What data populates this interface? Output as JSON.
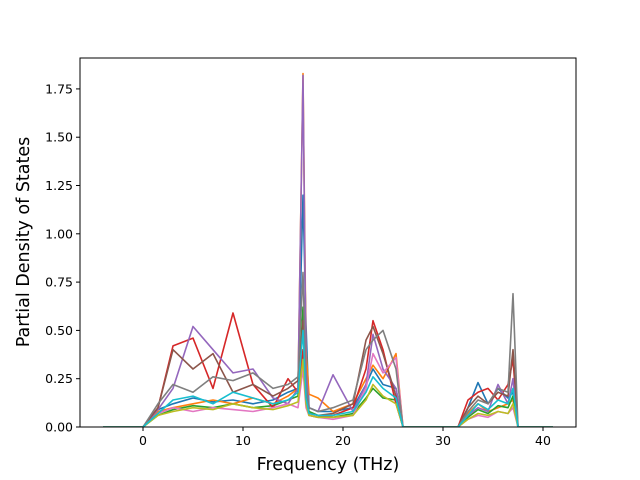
{
  "chart_data": {
    "type": "line",
    "title": "",
    "xlabel": "Frequency (THz)",
    "ylabel": "Partial Density of States",
    "xlim": [
      -6.3,
      43.3
    ],
    "ylim": [
      0,
      1.91
    ],
    "xticks": [
      0,
      10,
      20,
      30,
      40
    ],
    "xtick_labels": [
      "0",
      "10",
      "20",
      "30",
      "40"
    ],
    "yticks": [
      0,
      0.25,
      0.5,
      0.75,
      1.0,
      1.25,
      1.5,
      1.75
    ],
    "ytick_labels": [
      "0.00",
      "0.25",
      "0.50",
      "0.75",
      "1.00",
      "1.25",
      "1.50",
      "1.75"
    ],
    "grid": false,
    "legend": "none",
    "series": [
      {
        "color": "#1f77b4",
        "x": [
          -4,
          0,
          1.5,
          3,
          5,
          7,
          9,
          11,
          13,
          14.5,
          15.5,
          16.0,
          16.3,
          16.6,
          17.5,
          19,
          21,
          22.3,
          23,
          24,
          25.3,
          26,
          31.5,
          32.5,
          33.5,
          34.5,
          35.5,
          36.5,
          37,
          37.5,
          41
        ],
        "y": [
          0,
          0,
          0.09,
          0.12,
          0.15,
          0.13,
          0.14,
          0.12,
          0.14,
          0.18,
          0.2,
          1.2,
          0.53,
          0.1,
          0.08,
          0.08,
          0.1,
          0.22,
          0.3,
          0.22,
          0.2,
          0,
          0,
          0.1,
          0.23,
          0.12,
          0.2,
          0.15,
          0.18,
          0,
          0
        ]
      },
      {
        "color": "#ff7f0e",
        "x": [
          -4,
          0,
          1.5,
          3,
          5,
          7,
          9,
          11,
          13,
          14.5,
          15.5,
          16.0,
          16.3,
          16.6,
          17.5,
          19,
          21,
          22.3,
          23,
          24,
          25.3,
          26,
          31.5,
          32.5,
          33.5,
          34.5,
          35.5,
          36.5,
          37,
          37.5,
          41
        ],
        "y": [
          0,
          0,
          0.08,
          0.1,
          0.12,
          0.14,
          0.12,
          0.15,
          0.12,
          0.16,
          0.2,
          1.83,
          0.4,
          0.17,
          0.15,
          0.08,
          0.12,
          0.25,
          0.32,
          0.25,
          0.38,
          0,
          0,
          0.07,
          0.12,
          0.08,
          0.1,
          0.12,
          0.14,
          0,
          0
        ]
      },
      {
        "color": "#2ca02c",
        "x": [
          -4,
          0,
          1.5,
          3,
          5,
          7,
          9,
          11,
          13,
          14.5,
          15.5,
          16.0,
          16.3,
          16.6,
          17.5,
          19,
          21,
          22.3,
          23,
          24,
          25.3,
          26,
          31.5,
          32.5,
          33.5,
          34.5,
          35.5,
          36.5,
          37,
          37.5,
          41
        ],
        "y": [
          0,
          0,
          0.06,
          0.09,
          0.11,
          0.1,
          0.12,
          0.1,
          0.11,
          0.14,
          0.16,
          0.62,
          0.2,
          0.08,
          0.06,
          0.05,
          0.07,
          0.15,
          0.2,
          0.15,
          0.14,
          0,
          0,
          0.05,
          0.09,
          0.07,
          0.11,
          0.1,
          0.16,
          0,
          0
        ]
      },
      {
        "color": "#d62728",
        "x": [
          -4,
          0,
          1.5,
          3,
          5,
          7,
          9,
          11,
          13,
          14.5,
          15.5,
          16.0,
          16.3,
          16.6,
          17.5,
          19,
          21,
          22.3,
          23,
          24,
          25.3,
          26,
          31.5,
          32.5,
          33.5,
          34.5,
          35.5,
          36.5,
          37,
          37.5,
          41
        ],
        "y": [
          0,
          0,
          0.1,
          0.42,
          0.46,
          0.2,
          0.59,
          0.22,
          0.1,
          0.25,
          0.18,
          0.4,
          0.12,
          0.06,
          0.05,
          0.06,
          0.1,
          0.3,
          0.55,
          0.4,
          0.12,
          0,
          0,
          0.14,
          0.18,
          0.2,
          0.14,
          0.22,
          0.35,
          0,
          0
        ]
      },
      {
        "color": "#9467bd",
        "x": [
          -4,
          0,
          1.5,
          3,
          5,
          7,
          9,
          11,
          13,
          14.5,
          15.5,
          16.0,
          16.3,
          16.6,
          17.5,
          19,
          21,
          22.3,
          23,
          24,
          25.3,
          26,
          31.5,
          32.5,
          33.5,
          34.5,
          35.5,
          36.5,
          37,
          37.5,
          41
        ],
        "y": [
          0,
          0,
          0.09,
          0.2,
          0.52,
          0.4,
          0.28,
          0.3,
          0.15,
          0.12,
          0.2,
          1.82,
          0.3,
          0.1,
          0.08,
          0.27,
          0.08,
          0.22,
          0.48,
          0.3,
          0.2,
          0,
          0,
          0.06,
          0.1,
          0.08,
          0.22,
          0.12,
          0.25,
          0,
          0
        ]
      },
      {
        "color": "#8c564b",
        "x": [
          -4,
          0,
          1.5,
          3,
          5,
          7,
          9,
          11,
          13,
          14.5,
          15.5,
          16.0,
          16.3,
          16.6,
          17.5,
          19,
          21,
          22.3,
          23,
          24,
          25.3,
          26,
          31.5,
          32.5,
          33.5,
          34.5,
          35.5,
          36.5,
          37,
          37.5,
          41
        ],
        "y": [
          0,
          0,
          0.1,
          0.4,
          0.3,
          0.38,
          0.18,
          0.22,
          0.16,
          0.2,
          0.24,
          0.55,
          0.16,
          0.07,
          0.06,
          0.07,
          0.12,
          0.45,
          0.52,
          0.38,
          0.16,
          0,
          0,
          0.1,
          0.16,
          0.12,
          0.18,
          0.16,
          0.4,
          0,
          0
        ]
      },
      {
        "color": "#e377c2",
        "x": [
          -4,
          0,
          1.5,
          3,
          5,
          7,
          9,
          11,
          13,
          14.5,
          15.5,
          16.0,
          16.3,
          16.6,
          17.5,
          19,
          21,
          22.3,
          23,
          24,
          25.3,
          26,
          31.5,
          32.5,
          33.5,
          34.5,
          35.5,
          36.5,
          37,
          37.5,
          41
        ],
        "y": [
          0,
          0,
          0.07,
          0.1,
          0.08,
          0.1,
          0.09,
          0.08,
          0.1,
          0.12,
          0.1,
          0.3,
          0.1,
          0.06,
          0.05,
          0.04,
          0.06,
          0.2,
          0.38,
          0.28,
          0.36,
          0,
          0,
          0.04,
          0.06,
          0.05,
          0.08,
          0.07,
          0.1,
          0,
          0
        ]
      },
      {
        "color": "#7f7f7f",
        "x": [
          -4,
          0,
          1.5,
          3,
          5,
          7,
          9,
          11,
          13,
          14.5,
          15.5,
          16.0,
          16.3,
          16.6,
          17.5,
          19,
          21,
          22.3,
          23,
          24,
          25.3,
          26,
          31.5,
          32.5,
          33.5,
          34.5,
          35.5,
          36.5,
          37,
          37.5,
          41
        ],
        "y": [
          0,
          0,
          0.12,
          0.22,
          0.18,
          0.26,
          0.24,
          0.28,
          0.2,
          0.22,
          0.26,
          0.8,
          0.22,
          0.1,
          0.08,
          0.1,
          0.14,
          0.4,
          0.45,
          0.5,
          0.3,
          0,
          0,
          0.08,
          0.14,
          0.12,
          0.2,
          0.18,
          0.69,
          0,
          0
        ]
      },
      {
        "color": "#bcbd22",
        "x": [
          -4,
          0,
          1.5,
          3,
          5,
          7,
          9,
          11,
          13,
          14.5,
          15.5,
          16.0,
          16.3,
          16.6,
          17.5,
          19,
          21,
          22.3,
          23,
          24,
          25.3,
          26,
          31.5,
          32.5,
          33.5,
          34.5,
          35.5,
          36.5,
          37,
          37.5,
          41
        ],
        "y": [
          0,
          0,
          0.06,
          0.08,
          0.1,
          0.09,
          0.12,
          0.1,
          0.09,
          0.11,
          0.13,
          0.35,
          0.12,
          0.06,
          0.05,
          0.05,
          0.06,
          0.14,
          0.22,
          0.16,
          0.12,
          0,
          0,
          0.04,
          0.07,
          0.06,
          0.08,
          0.07,
          0.12,
          0,
          0
        ]
      },
      {
        "color": "#17becf",
        "x": [
          -4,
          0,
          1.5,
          3,
          5,
          7,
          9,
          11,
          13,
          14.5,
          15.5,
          16.0,
          16.3,
          16.6,
          17.5,
          19,
          21,
          22.3,
          23,
          24,
          25.3,
          26,
          31.5,
          32.5,
          33.5,
          34.5,
          35.5,
          36.5,
          37,
          37.5,
          41
        ],
        "y": [
          0,
          0,
          0.07,
          0.14,
          0.16,
          0.12,
          0.18,
          0.15,
          0.12,
          0.14,
          0.18,
          0.5,
          0.15,
          0.07,
          0.06,
          0.06,
          0.08,
          0.18,
          0.26,
          0.2,
          0.15,
          0,
          0,
          0.06,
          0.12,
          0.09,
          0.14,
          0.12,
          0.2,
          0,
          0
        ]
      }
    ]
  }
}
